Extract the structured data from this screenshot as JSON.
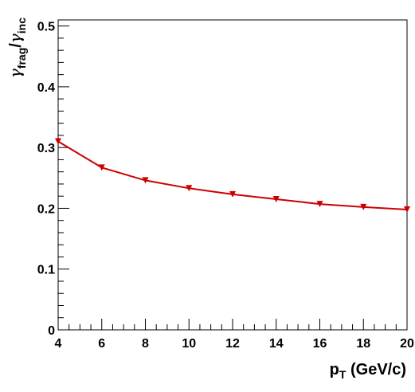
{
  "chart_data": {
    "type": "line",
    "x": [
      4,
      6,
      8,
      10,
      12,
      14,
      16,
      18,
      20
    ],
    "series": [
      {
        "values": [
          0.31,
          0.267,
          0.246,
          0.233,
          0.223,
          0.215,
          0.207,
          0.202,
          0.198
        ]
      }
    ],
    "xlim": [
      4,
      20
    ],
    "ylim": [
      0,
      0.51
    ],
    "xticks": [
      "4",
      "6",
      "8",
      "10",
      "12",
      "14",
      "16",
      "18",
      "20"
    ],
    "yticks": [
      "0",
      "0.1",
      "0.2",
      "0.3",
      "0.4",
      "0.5"
    ],
    "xlabel": {
      "main": "p",
      "sub": "T",
      "rest": " (GeV/c)"
    },
    "ylabel": {
      "g1": "γ",
      "sub1": "frag",
      "slash": "/",
      "g2": "γ",
      "sub2": "inc"
    },
    "grid": false,
    "marker": "triangle-down",
    "colors": {
      "series": "#cc0000",
      "axis": "#000000"
    }
  }
}
